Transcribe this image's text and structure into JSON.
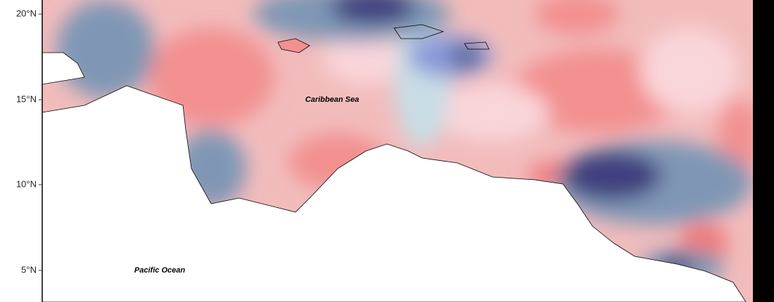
{
  "map": {
    "latitude_labels": [
      "20°N",
      "15°N",
      "10°N",
      "5°N"
    ],
    "place_labels": [
      "Caribbean Sea",
      "Pacific Ocean"
    ]
  }
}
